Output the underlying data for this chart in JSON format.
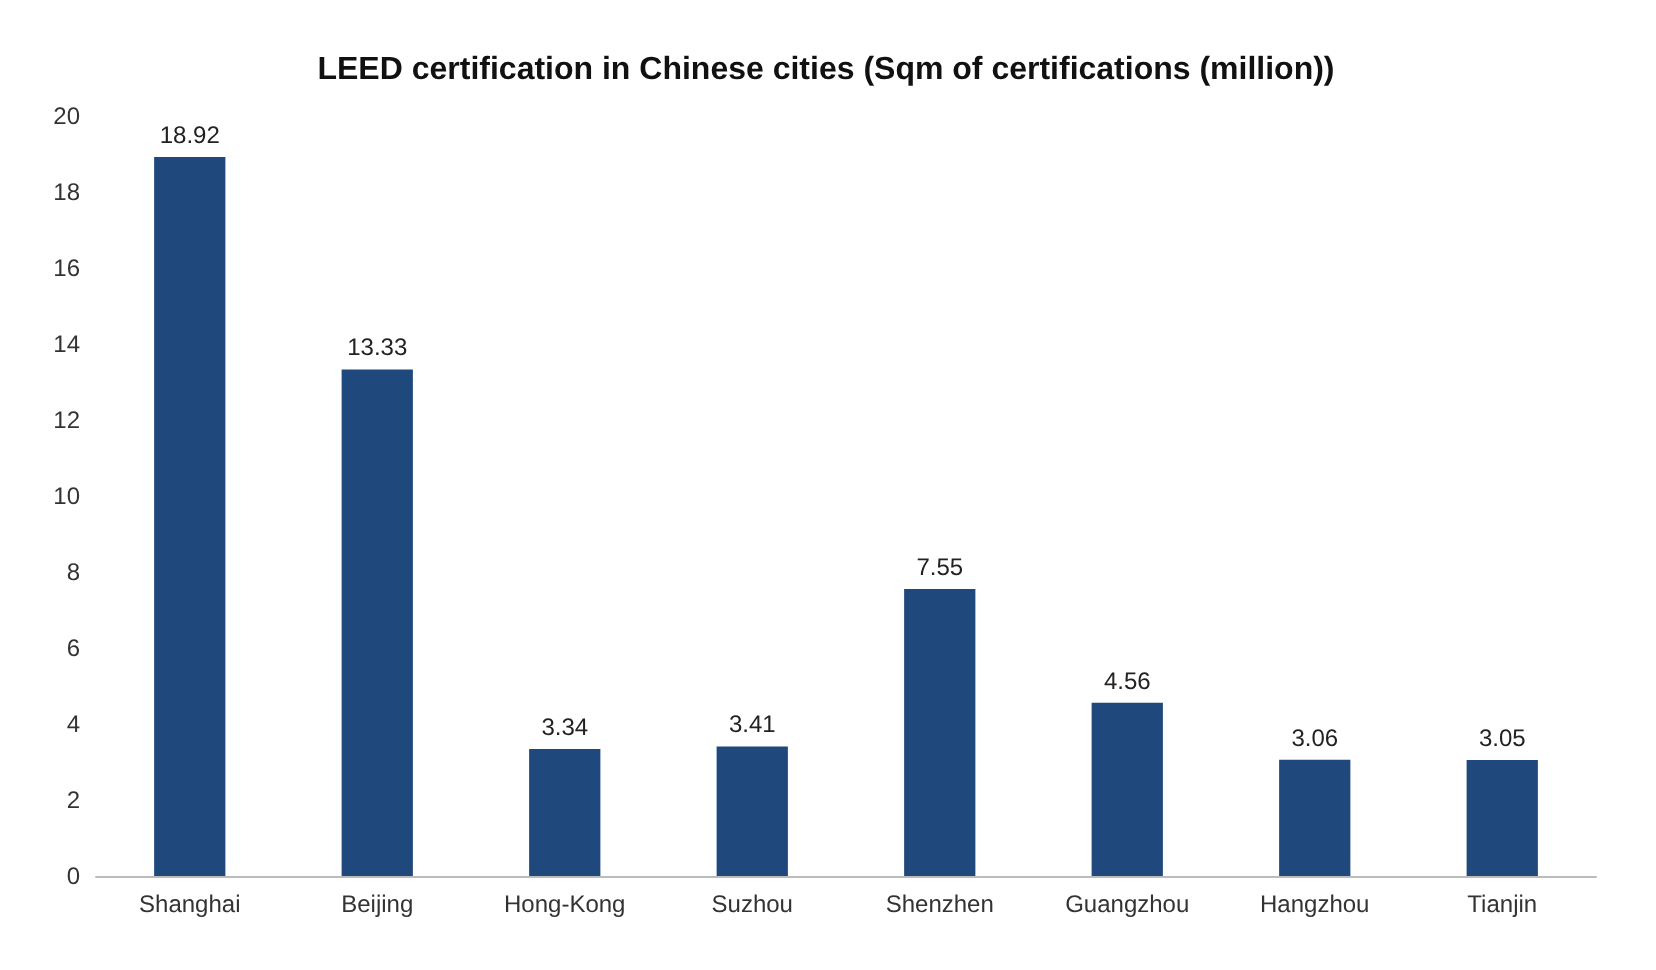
{
  "chart_data": {
    "type": "bar",
    "title": "LEED certification in Chinese cities (Sqm of certifications (million))",
    "categories": [
      "Shanghai",
      "Beijing",
      "Hong-Kong",
      "Suzhou",
      "Shenzhen",
      "Guangzhou",
      "Hangzhou",
      "Tianjin"
    ],
    "values": [
      18.92,
      13.33,
      3.34,
      3.41,
      7.55,
      4.56,
      3.06,
      3.05
    ],
    "color": "#1f497d",
    "ylim": [
      0,
      20
    ],
    "yticks": [
      0,
      2,
      4,
      6,
      8,
      10,
      12,
      14,
      16,
      18,
      20
    ],
    "grid": false,
    "data_labels": true
  }
}
